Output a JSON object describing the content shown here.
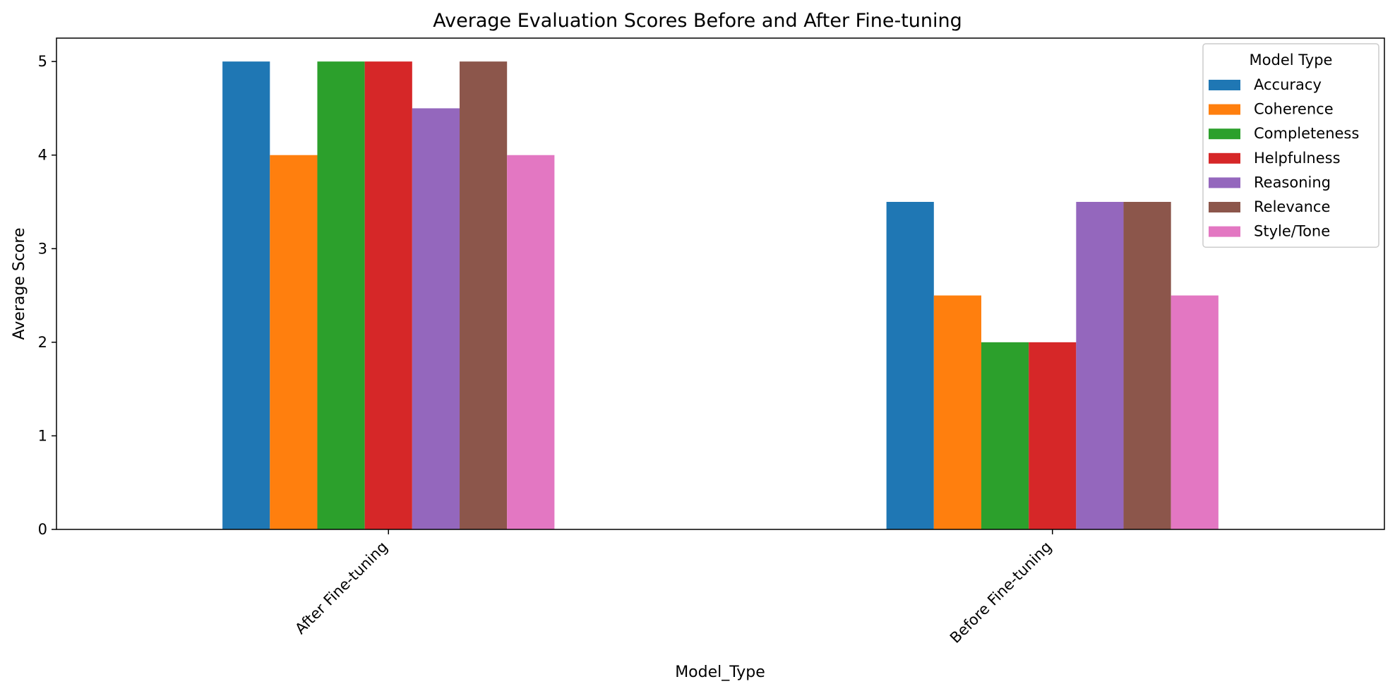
{
  "chart_data": {
    "type": "bar",
    "title": "Average Evaluation Scores Before and After Fine-tuning",
    "xlabel": "Model_Type",
    "ylabel": "Average Score",
    "categories": [
      "After Fine-tuning",
      "Before Fine-tuning"
    ],
    "series": [
      {
        "name": "Accuracy",
        "color": "#1f77b4",
        "values": [
          5,
          3.5
        ]
      },
      {
        "name": "Coherence",
        "color": "#ff7f0e",
        "values": [
          4,
          2.5
        ]
      },
      {
        "name": "Completeness",
        "color": "#2ca02c",
        "values": [
          5,
          2
        ]
      },
      {
        "name": "Helpfulness",
        "color": "#d62728",
        "values": [
          5,
          2
        ]
      },
      {
        "name": "Reasoning",
        "color": "#9467bd",
        "values": [
          4.5,
          3.5
        ]
      },
      {
        "name": "Relevance",
        "color": "#8c564b",
        "values": [
          5,
          3.5
        ]
      },
      {
        "name": "Style/Tone",
        "color": "#e377c2",
        "values": [
          4,
          2.5
        ]
      }
    ],
    "ylim": [
      0,
      5.25
    ],
    "yticks": [
      0,
      1,
      2,
      3,
      4,
      5
    ],
    "legend": {
      "title": "Model Type",
      "placement": "top-right"
    },
    "grid": false
  }
}
